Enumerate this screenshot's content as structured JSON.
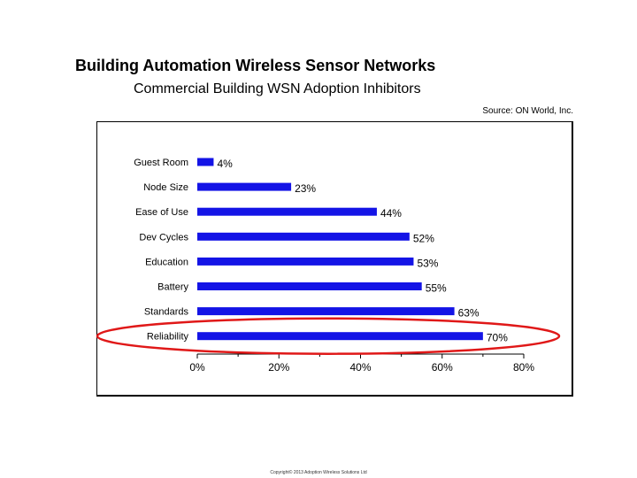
{
  "header": {
    "title": "Building Automation Wireless Sensor Networks",
    "subtitle": "Commercial Building WSN Adoption Inhibitors",
    "source": "Source: ON World, Inc."
  },
  "footer": {
    "copyright": "Copyright© 2013 Adoption Wireless Solutions Ltd"
  },
  "chart_data": {
    "type": "bar",
    "orientation": "horizontal",
    "categories": [
      "Guest Room",
      "Node Size",
      "Ease of Use",
      "Dev Cycles",
      "Education",
      "Battery",
      "Standards",
      "Reliability"
    ],
    "values": [
      4,
      23,
      44,
      52,
      53,
      55,
      63,
      70
    ],
    "value_labels": [
      "4%",
      "23%",
      "44%",
      "52%",
      "53%",
      "55%",
      "63%",
      "70%"
    ],
    "xlim": [
      0,
      80
    ],
    "xticks": [
      0,
      20,
      40,
      60,
      80
    ],
    "xtick_labels": [
      "0%",
      "20%",
      "40%",
      "60%",
      "80%"
    ],
    "grid": false,
    "bar_color": "#1414e6",
    "highlight": {
      "category": "Reliability",
      "shape": "ellipse",
      "color": "#e01818"
    }
  }
}
